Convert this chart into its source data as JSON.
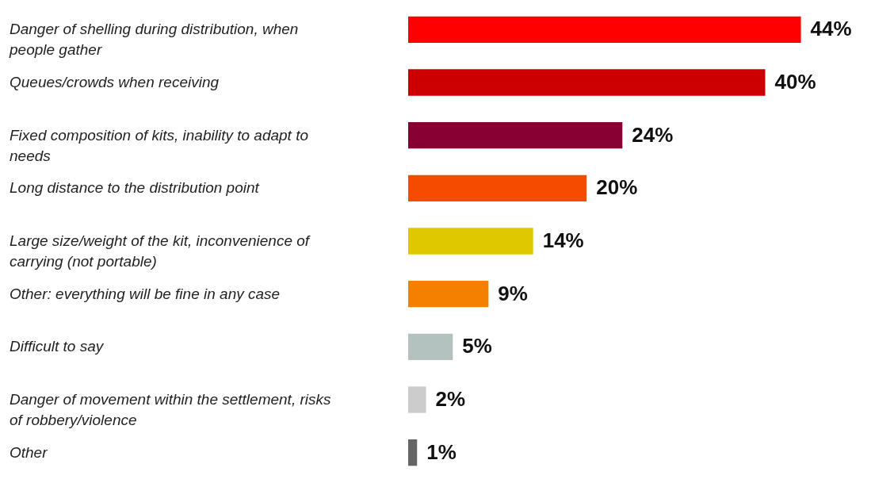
{
  "chart_data": {
    "type": "bar",
    "orientation": "horizontal",
    "categories": [
      "Danger of shelling during distribution, when people gather",
      "Queues/crowds when receiving",
      "Fixed composition of kits, inability to adapt to needs",
      "Long distance to the distribution point",
      "Large size/weight of the kit, inconvenience of carrying (not portable)",
      "Other: everything will be fine in any case",
      "Difficult to say",
      "Danger of movement within the settlement, risks of robbery/violence",
      "Other"
    ],
    "values": [
      44,
      40,
      24,
      20,
      14,
      9,
      5,
      2,
      1
    ],
    "colors": [
      "#ff0000",
      "#cc0000",
      "#880033",
      "#f54b00",
      "#e0c800",
      "#f58000",
      "#b3c2bf",
      "#cccccc",
      "#666666"
    ],
    "value_labels": [
      "44%",
      "40%",
      "24%",
      "20%",
      "14%",
      "9%",
      "5%",
      "2%",
      "1%"
    ]
  }
}
